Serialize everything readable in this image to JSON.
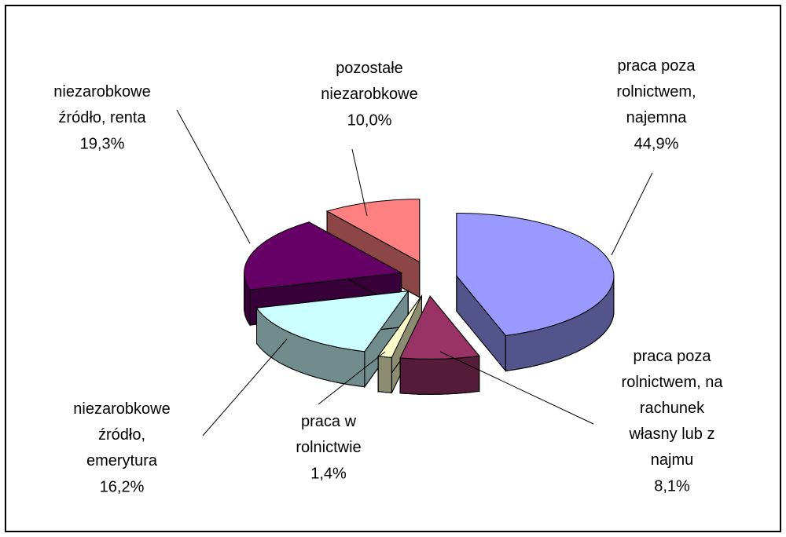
{
  "chart_data": {
    "type": "pie",
    "categories": [
      "praca poza\nrolnictwem,\nnajemna",
      "praca poza\nrolnictwem, na\nrachunek\nwłasny lub z\nnajmu",
      "praca w\nrolnictwie",
      "niezarobkowe\nźródło,\nemerytura",
      "niezarobkowe\nźródło, renta",
      "pozostałe\nniezarobkowe"
    ],
    "values": [
      44.9,
      8.1,
      1.4,
      16.2,
      19.3,
      10.0
    ],
    "value_labels": [
      "44,9%",
      "8,1%",
      "1,4%",
      "16,2%",
      "19,3%",
      "10,0%"
    ],
    "colors": [
      "#9999ff",
      "#993366",
      "#ffffcc",
      "#ccffff",
      "#660066",
      "#ff8080"
    ]
  }
}
